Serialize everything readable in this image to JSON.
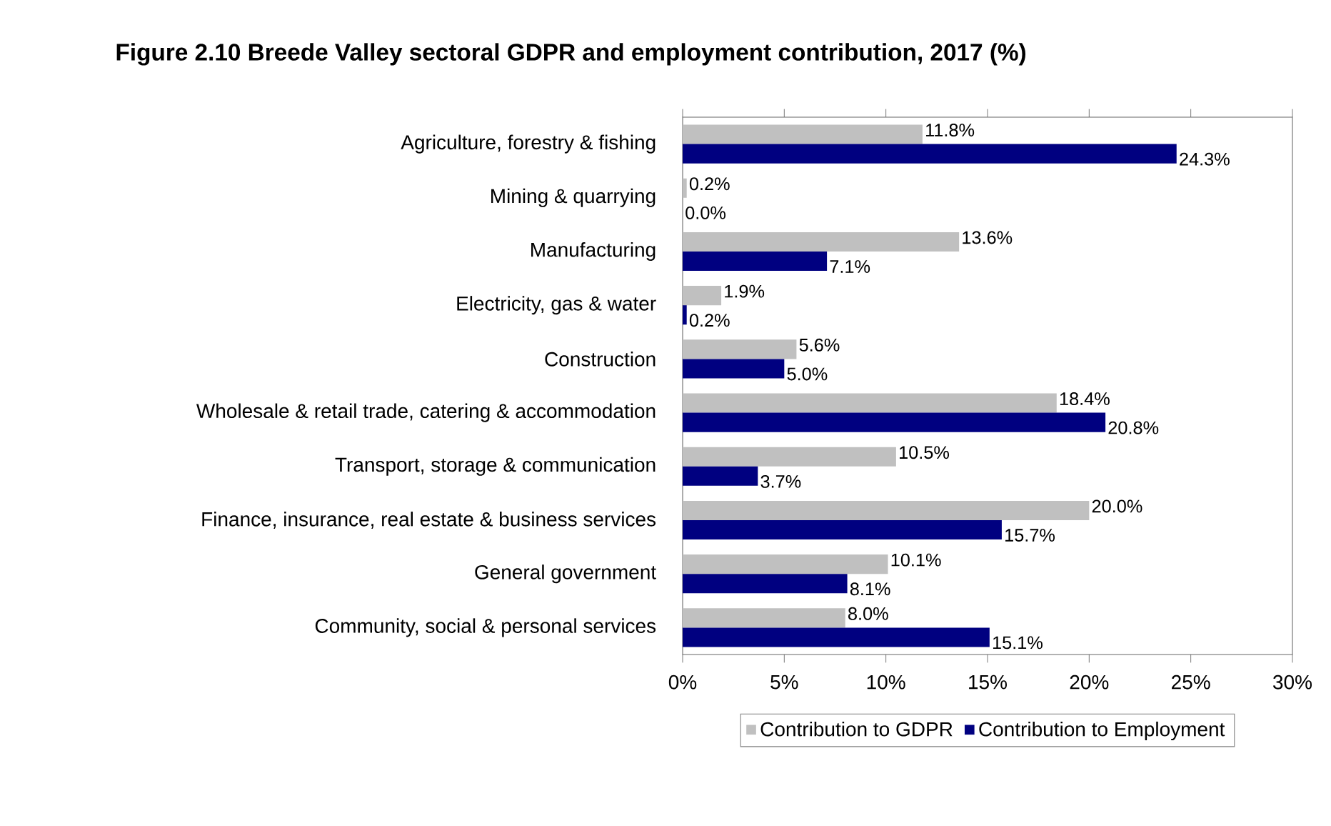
{
  "chart_data": {
    "type": "bar",
    "orientation": "horizontal",
    "title": "Figure 2.10   Breede Valley sectoral GDPR and employment contribution, 2017 (%)",
    "categories": [
      "Agriculture, forestry & fishing",
      "Mining & quarrying",
      "Manufacturing",
      "Electricity, gas & water",
      "Construction",
      "Wholesale & retail trade, catering & accommodation",
      "Transport, storage & communication",
      "Finance, insurance, real estate & business services",
      "General government",
      "Community, social & personal services"
    ],
    "series": [
      {
        "name": "Contribution to GDPR",
        "color": "#c0c0c0",
        "values": [
          11.8,
          0.2,
          13.6,
          1.9,
          5.6,
          18.4,
          10.5,
          20.0,
          10.1,
          8.0
        ],
        "value_labels": [
          "11.8%",
          "0.2%",
          "13.6%",
          "1.9%",
          "5.6%",
          "18.4%",
          "10.5%",
          "20.0%",
          "10.1%",
          "8.0%"
        ]
      },
      {
        "name": "Contribution to Employment",
        "color": "#000080",
        "values": [
          24.3,
          0.0,
          7.1,
          0.2,
          5.0,
          20.8,
          3.7,
          15.7,
          8.1,
          15.1
        ],
        "value_labels": [
          "24.3%",
          "0.0%",
          "7.1%",
          "0.2%",
          "5.0%",
          "20.8%",
          "3.7%",
          "15.7%",
          "8.1%",
          "15.1%"
        ]
      }
    ],
    "xlim": [
      0,
      30
    ],
    "xticks": [
      {
        "value": 0,
        "label": "0%"
      },
      {
        "value": 5,
        "label": "5%"
      },
      {
        "value": 10,
        "label": "10%"
      },
      {
        "value": 15,
        "label": "15%"
      },
      {
        "value": 20,
        "label": "20%"
      },
      {
        "value": 25,
        "label": "25%"
      },
      {
        "value": 30,
        "label": "30%"
      }
    ],
    "grid": false,
    "legend": "bottom"
  }
}
